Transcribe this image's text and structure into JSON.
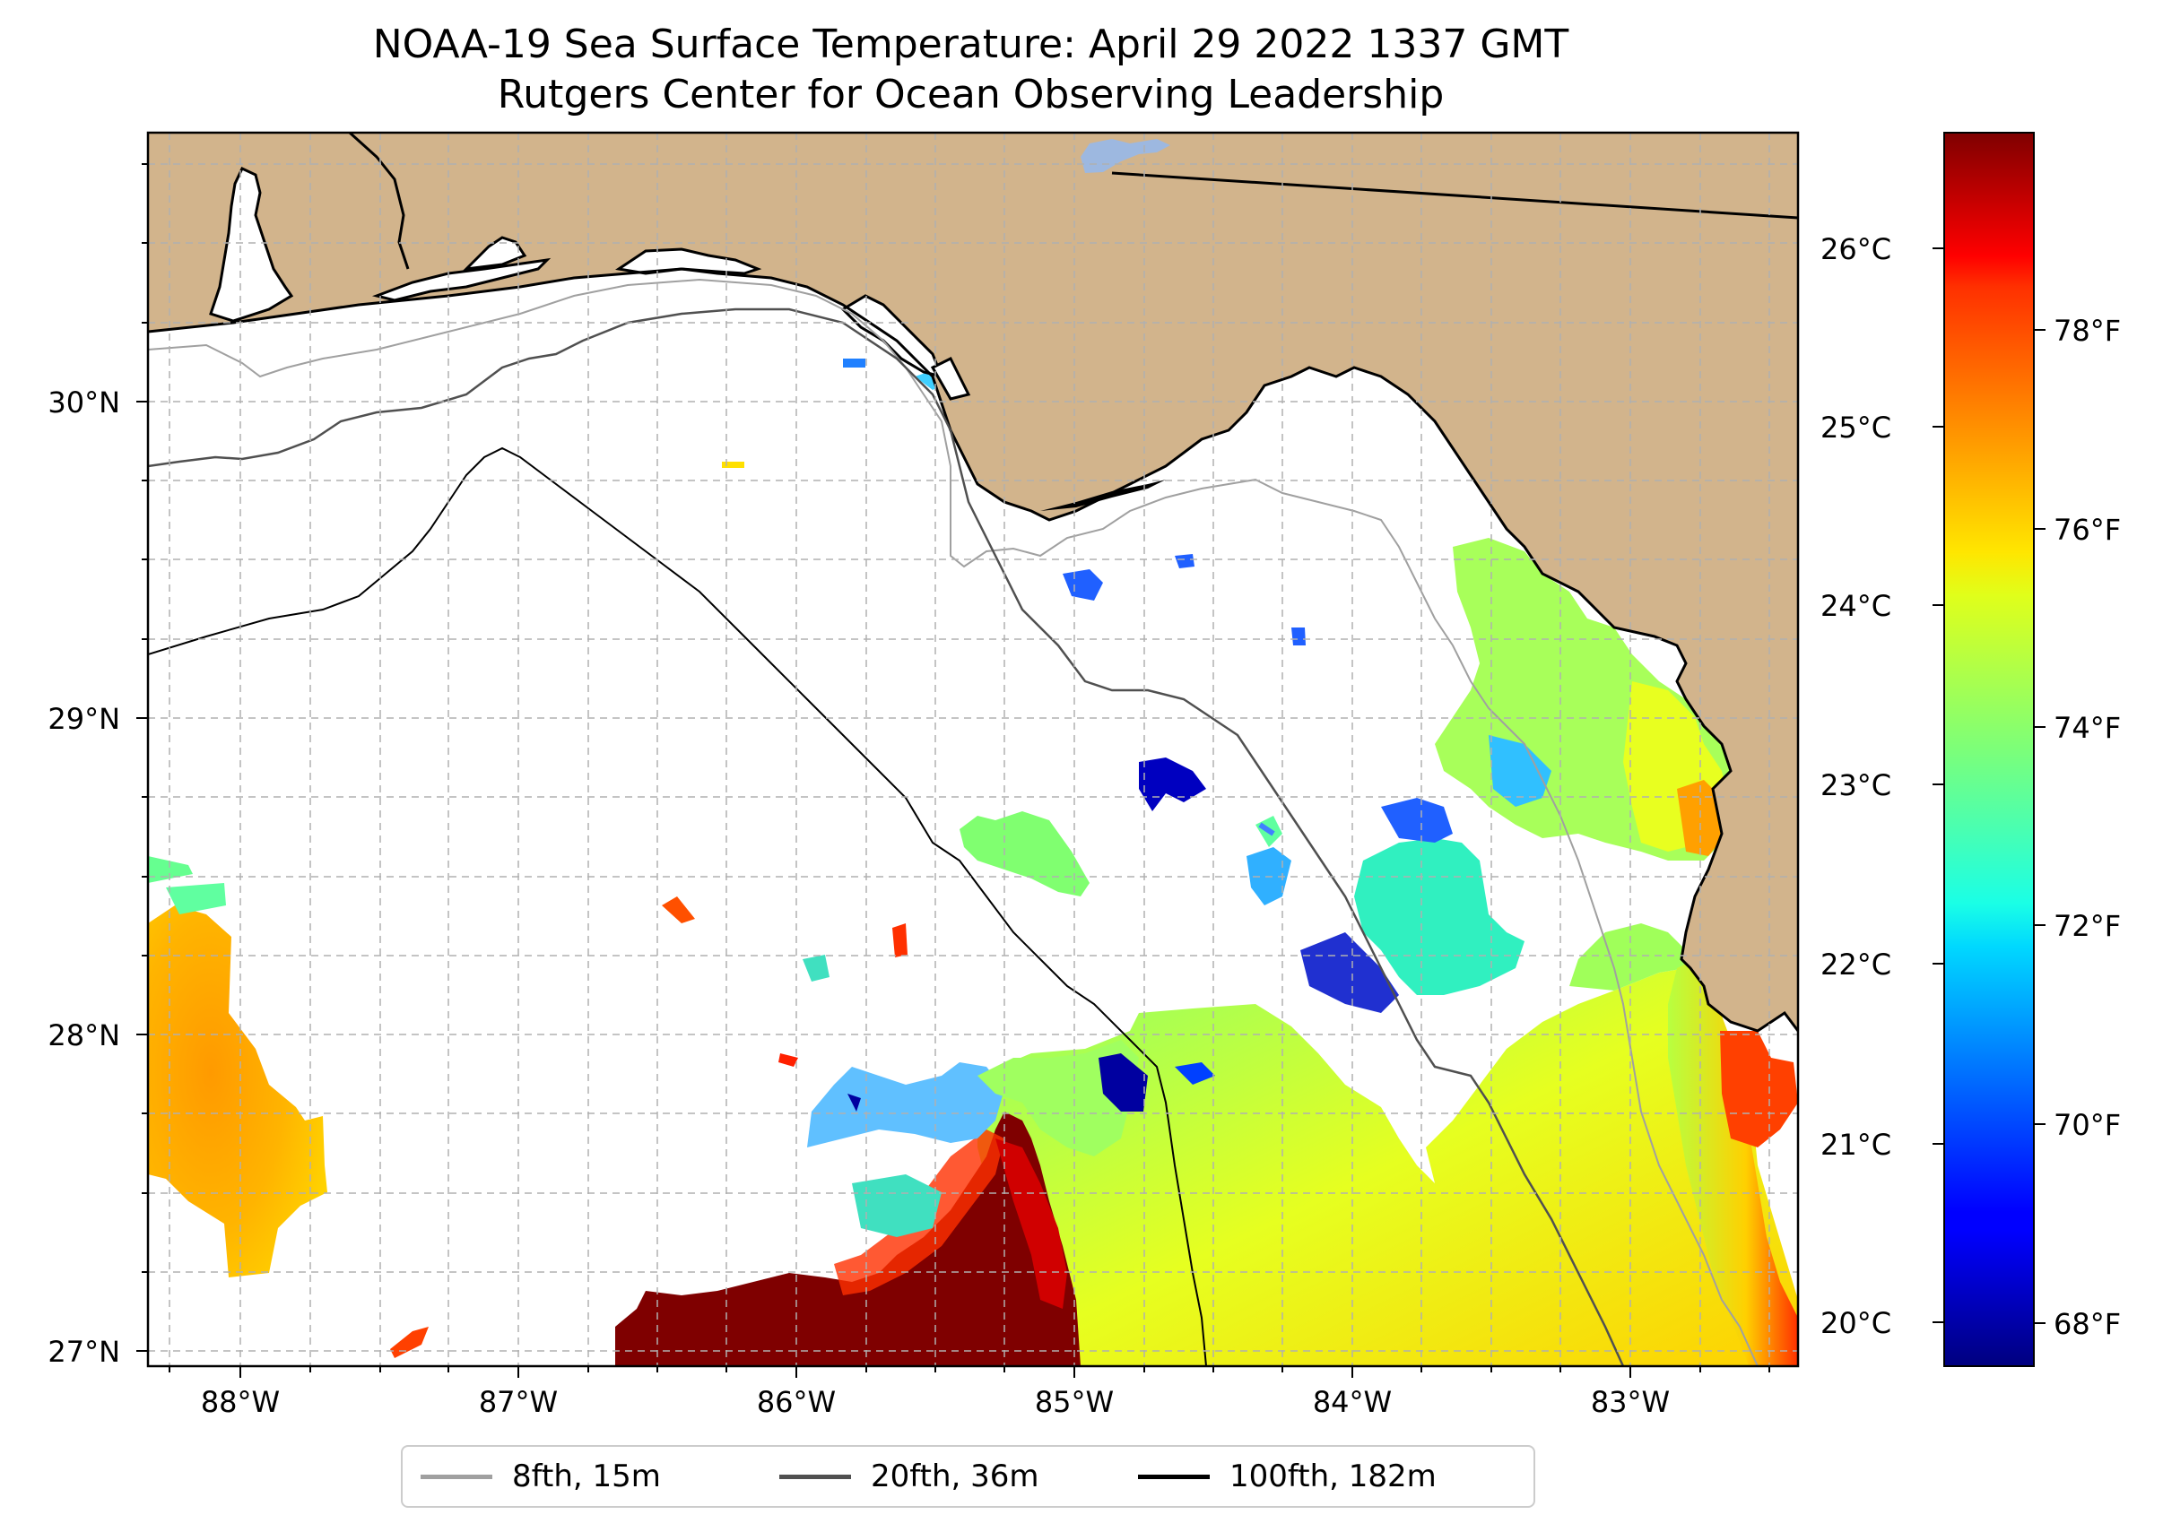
{
  "title": {
    "line1": "NOAA-19 Sea Surface Temperature: April 29 2022 1337 GMT",
    "line2": "Rutgers Center for Ocean Observing Leadership"
  },
  "map": {
    "lat_ticks": [
      "30°N",
      "29°N",
      "28°N",
      "27°N"
    ],
    "lon_ticks": [
      "88°W",
      "87°W",
      "86°W",
      "85°W",
      "84°W",
      "83°W"
    ],
    "extent": {
      "lon_min": -88.33,
      "lon_max": -82.4,
      "lat_min": 26.95,
      "lat_max": 30.85
    },
    "land_color": "#d2b48c",
    "lake_color": "#9db8e0"
  },
  "colorbar": {
    "celsius_labels": [
      "26°C",
      "25°C",
      "24°C",
      "23°C",
      "22°C",
      "21°C",
      "20°C"
    ],
    "fahrenheit_labels": [
      "78°F",
      "76°F",
      "74°F",
      "72°F",
      "70°F",
      "68°F"
    ],
    "colormap": "jet",
    "range_f": [
      67.6,
      80.1
    ]
  },
  "legend": {
    "items": [
      {
        "label": "8fth, 15m",
        "color": "#a0a0a0"
      },
      {
        "label": "20fth, 36m",
        "color": "#505050"
      },
      {
        "label": "100fth, 182m",
        "color": "#000000"
      }
    ]
  }
}
